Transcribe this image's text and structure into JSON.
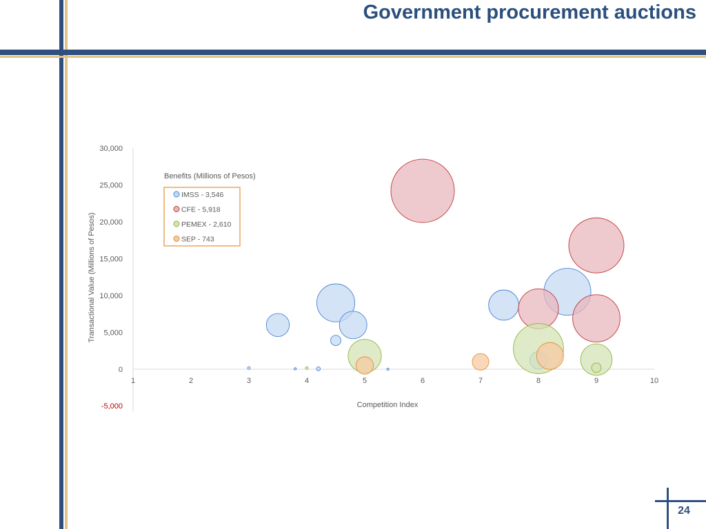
{
  "slide": {
    "title": "Government procurement auctions",
    "page_number": "24"
  },
  "colors": {
    "frame_blue": "#2f4f7f",
    "frame_gold": "#e2c48a",
    "title_blue": "#2b4f7d"
  },
  "chart_data": {
    "type": "bubble",
    "legend_title": "Benefits (Millions of Pesos)",
    "legend_position": "top-left",
    "xlabel": "Competition Index",
    "ylabel": "Transactional Value  (Millions of Pesos)",
    "xlim": [
      1,
      10
    ],
    "ylim": [
      -5000,
      30000
    ],
    "x_ticks": [
      "1",
      "2",
      "3",
      "4",
      "5",
      "6",
      "7",
      "8",
      "9",
      "10"
    ],
    "y_ticks": [
      {
        "value": 30000,
        "label": "30,000"
      },
      {
        "value": 25000,
        "label": "25,000"
      },
      {
        "value": 20000,
        "label": "20,000"
      },
      {
        "value": 15000,
        "label": "15,000"
      },
      {
        "value": 10000,
        "label": "10,000"
      },
      {
        "value": 5000,
        "label": "5,000"
      },
      {
        "value": 0,
        "label": "0"
      },
      {
        "value": -5000,
        "label": "-5,000"
      }
    ],
    "series": [
      {
        "name": "IMSS - 3,546",
        "fill": "#c6d9f1",
        "stroke": "#4a86d4",
        "points": [
          {
            "x": 3.0,
            "y": 150,
            "size": 1
          },
          {
            "x": 3.8,
            "y": 50,
            "size": 0.5
          },
          {
            "x": 4.2,
            "y": 50,
            "size": 2
          },
          {
            "x": 3.5,
            "y": 6000,
            "size": 70
          },
          {
            "x": 4.5,
            "y": 3900,
            "size": 14
          },
          {
            "x": 4.5,
            "y": 9000,
            "size": 190
          },
          {
            "x": 4.8,
            "y": 6000,
            "size": 100
          },
          {
            "x": 5.4,
            "y": 0,
            "size": 0.3
          },
          {
            "x": 7.4,
            "y": 8700,
            "size": 120
          },
          {
            "x": 8.0,
            "y": 1200,
            "size": 40
          },
          {
            "x": 8.5,
            "y": 10500,
            "size": 290
          }
        ]
      },
      {
        "name": "CFE - 5,918",
        "fill": "#e8b7bc",
        "stroke": "#c0393b",
        "points": [
          {
            "x": 6.0,
            "y": 24200,
            "size": 530
          },
          {
            "x": 9.0,
            "y": 16800,
            "size": 400
          },
          {
            "x": 8.0,
            "y": 8200,
            "size": 210
          },
          {
            "x": 9.0,
            "y": 6900,
            "size": 295
          }
        ]
      },
      {
        "name": "PEMEX - 2,610",
        "fill": "#d4e3b5",
        "stroke": "#8fb53a",
        "points": [
          {
            "x": 4.0,
            "y": 150,
            "size": 1
          },
          {
            "x": 5.0,
            "y": 1800,
            "size": 145
          },
          {
            "x": 8.0,
            "y": 2800,
            "size": 330
          },
          {
            "x": 9.0,
            "y": 1300,
            "size": 130
          },
          {
            "x": 9.0,
            "y": 200,
            "size": 12
          }
        ]
      },
      {
        "name": "SEP - 743",
        "fill": "#f6c9a4",
        "stroke": "#e88e32",
        "points": [
          {
            "x": 5.0,
            "y": 500,
            "size": 40
          },
          {
            "x": 7.0,
            "y": 1000,
            "size": 36
          },
          {
            "x": 8.2,
            "y": 1800,
            "size": 95
          }
        ]
      }
    ]
  }
}
